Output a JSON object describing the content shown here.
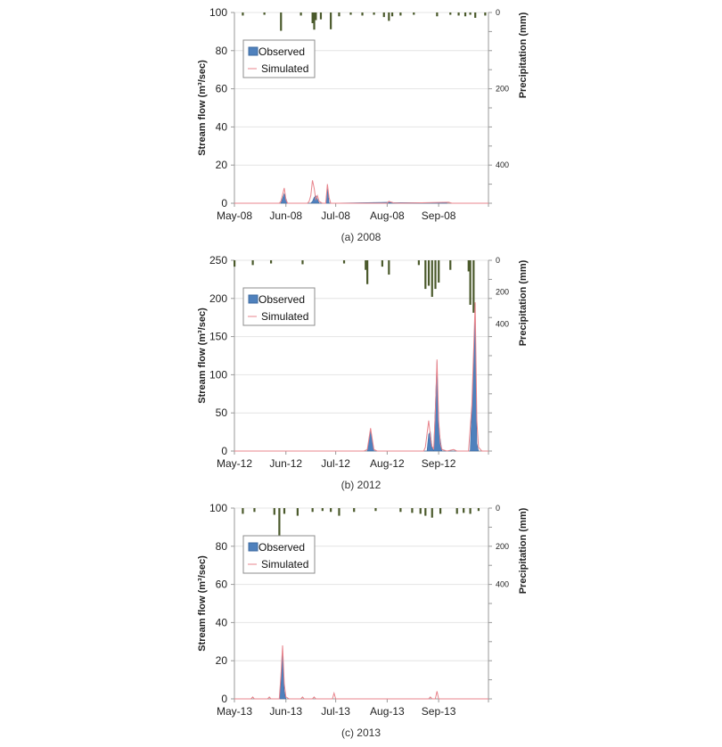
{
  "chart_data": [
    {
      "type": "area",
      "caption": "(a) 2008",
      "ylabel": "Stream flow (m³/sec)",
      "y2label": "Precipitation (mm)",
      "ylim": [
        0,
        100
      ],
      "yticks": [
        0,
        20,
        40,
        60,
        80,
        100
      ],
      "y2ticks": [
        0,
        200,
        400
      ],
      "y2lim": [
        0,
        500
      ],
      "xlabels": [
        "May-08",
        "Jun-08",
        "Jul-08",
        "Aug-08",
        "Sep-08"
      ],
      "legend": [
        "Observed",
        "Simulated"
      ],
      "colors": {
        "observed": "#4f81bd",
        "simulated": "#e8848c",
        "precip": "#4b5a2c"
      },
      "series": [
        {
          "name": "Observed",
          "points": [
            [
              28,
              0
            ],
            [
              30,
              5
            ],
            [
              32,
              0
            ],
            [
              46,
              0
            ],
            [
              47,
              1
            ],
            [
              48,
              3
            ],
            [
              49,
              4
            ],
            [
              50,
              2
            ],
            [
              51,
              0
            ],
            [
              55,
              0
            ],
            [
              56,
              9
            ],
            [
              57,
              0
            ],
            [
              93,
              0.5
            ],
            [
              95,
              0.3
            ],
            [
              128,
              0.3
            ]
          ]
        },
        {
          "name": "Simulated",
          "points": [
            [
              0,
              0
            ],
            [
              27,
              0
            ],
            [
              28,
              1
            ],
            [
              30,
              8
            ],
            [
              31,
              2
            ],
            [
              32,
              0
            ],
            [
              44,
              0
            ],
            [
              45,
              1
            ],
            [
              46,
              4
            ],
            [
              47,
              12
            ],
            [
              48,
              8
            ],
            [
              49,
              2
            ],
            [
              50,
              4
            ],
            [
              51,
              1
            ],
            [
              53,
              0
            ],
            [
              55,
              0
            ],
            [
              56,
              10
            ],
            [
              57,
              3
            ],
            [
              58,
              0
            ],
            [
              92,
              0
            ],
            [
              93,
              1
            ],
            [
              94,
              0.7
            ],
            [
              96,
              0.2
            ],
            [
              100,
              0
            ],
            [
              129,
              0.5
            ],
            [
              131,
              0
            ],
            [
              153,
              0
            ]
          ]
        },
        {
          "name": "Precipitation",
          "bars": [
            [
              5,
              8
            ],
            [
              18,
              6
            ],
            [
              28,
              48
            ],
            [
              40,
              8
            ],
            [
              47,
              28
            ],
            [
              48,
              45
            ],
            [
              49,
              20
            ],
            [
              52,
              18
            ],
            [
              58,
              44
            ],
            [
              63,
              10
            ],
            [
              70,
              6
            ],
            [
              77,
              8
            ],
            [
              84,
              6
            ],
            [
              90,
              12
            ],
            [
              93,
              22
            ],
            [
              95,
              10
            ],
            [
              100,
              8
            ],
            [
              108,
              6
            ],
            [
              122,
              10
            ],
            [
              130,
              6
            ],
            [
              135,
              8
            ],
            [
              139,
              10
            ],
            [
              142,
              6
            ],
            [
              145,
              14
            ],
            [
              151,
              8
            ]
          ]
        }
      ]
    },
    {
      "type": "area",
      "caption": "(b) 2012",
      "ylabel": "Stream flow (m³/sec)",
      "y2label": "Precipitation (mm)",
      "ylim": [
        0,
        250
      ],
      "yticks": [
        0,
        50,
        100,
        150,
        200,
        250
      ],
      "y2ticks": [
        0,
        200,
        400
      ],
      "y2lim": [
        0,
        1200
      ],
      "xlabels": [
        "May-12",
        "Jun-12",
        "Jul-12",
        "Aug-12",
        "Sep-12"
      ],
      "legend": [
        "Observed",
        "Simulated"
      ],
      "colors": {
        "observed": "#4f81bd",
        "simulated": "#e8848c",
        "precip": "#4b5a2c"
      },
      "series": [
        {
          "name": "Observed",
          "points": [
            [
              80,
              0
            ],
            [
              82,
              28
            ],
            [
              84,
              0
            ],
            [
              116,
              0
            ],
            [
              117,
              22
            ],
            [
              118,
              25
            ],
            [
              119,
              5
            ],
            [
              120,
              0
            ],
            [
              121,
              60
            ],
            [
              122,
              118
            ],
            [
              123,
              30
            ],
            [
              124,
              15
            ],
            [
              125,
              0
            ],
            [
              142,
              0
            ],
            [
              144,
              110
            ],
            [
              145,
              190
            ],
            [
              146,
              10
            ],
            [
              147,
              0
            ]
          ]
        },
        {
          "name": "Simulated",
          "points": [
            [
              0,
              0
            ],
            [
              78,
              0
            ],
            [
              80,
              2
            ],
            [
              82,
              30
            ],
            [
              84,
              2
            ],
            [
              86,
              0
            ],
            [
              114,
              0
            ],
            [
              115,
              5
            ],
            [
              117,
              40
            ],
            [
              118,
              20
            ],
            [
              119,
              6
            ],
            [
              120,
              3
            ],
            [
              121,
              50
            ],
            [
              122,
              120
            ],
            [
              123,
              40
            ],
            [
              124,
              10
            ],
            [
              125,
              2
            ],
            [
              128,
              0
            ],
            [
              132,
              2
            ],
            [
              134,
              0
            ],
            [
              141,
              0
            ],
            [
              143,
              60
            ],
            [
              145,
              195
            ],
            [
              146,
              40
            ],
            [
              147,
              5
            ],
            [
              149,
              0
            ],
            [
              153,
              0
            ]
          ]
        },
        {
          "name": "Precipitation",
          "bars": [
            [
              0,
              40
            ],
            [
              11,
              30
            ],
            [
              22,
              20
            ],
            [
              41,
              25
            ],
            [
              66,
              20
            ],
            [
              79,
              60
            ],
            [
              80,
              150
            ],
            [
              89,
              40
            ],
            [
              93,
              90
            ],
            [
              111,
              30
            ],
            [
              115,
              180
            ],
            [
              117,
              160
            ],
            [
              119,
              230
            ],
            [
              121,
              180
            ],
            [
              123,
              140
            ],
            [
              130,
              60
            ],
            [
              141,
              70
            ],
            [
              142,
              280
            ],
            [
              144,
              330
            ]
          ]
        }
      ]
    },
    {
      "type": "area",
      "caption": "(c) 2013",
      "ylabel": "Stream flow (m³/sec)",
      "y2label": "Precipitation (mm)",
      "ylim": [
        0,
        100
      ],
      "yticks": [
        0,
        20,
        40,
        60,
        80,
        100
      ],
      "y2ticks": [
        0,
        200,
        400
      ],
      "y2lim": [
        0,
        1000
      ],
      "xlabels": [
        "May-13",
        "Jun-13",
        "Jul-13",
        "Aug-13",
        "Sep-13"
      ],
      "legend": [
        "Observed",
        "Simulated"
      ],
      "colors": {
        "observed": "#4f81bd",
        "simulated": "#e8848c",
        "precip": "#4b5a2c"
      },
      "series": [
        {
          "name": "Observed",
          "points": [
            [
              27,
              0
            ],
            [
              28,
              8
            ],
            [
              29,
              25
            ],
            [
              30,
              4
            ],
            [
              31,
              0
            ]
          ]
        },
        {
          "name": "Simulated",
          "points": [
            [
              0,
              0
            ],
            [
              10,
              0
            ],
            [
              11,
              1
            ],
            [
              12,
              0
            ],
            [
              20,
              0
            ],
            [
              21,
              1
            ],
            [
              22,
              0
            ],
            [
              27,
              0
            ],
            [
              28,
              12
            ],
            [
              29,
              28
            ],
            [
              30,
              8
            ],
            [
              31,
              1
            ],
            [
              33,
              0
            ],
            [
              40,
              0
            ],
            [
              41,
              1
            ],
            [
              42,
              0
            ],
            [
              47,
              0
            ],
            [
              48,
              1
            ],
            [
              49,
              0
            ],
            [
              59,
              0
            ],
            [
              60,
              3
            ],
            [
              61,
              0
            ],
            [
              117,
              0
            ],
            [
              118,
              1
            ],
            [
              119,
              0
            ],
            [
              121,
              0
            ],
            [
              122,
              4
            ],
            [
              123,
              0
            ],
            [
              153,
              0
            ]
          ]
        },
        {
          "name": "Precipitation",
          "bars": [
            [
              5,
              30
            ],
            [
              12,
              20
            ],
            [
              24,
              35
            ],
            [
              27,
              160
            ],
            [
              30,
              30
            ],
            [
              38,
              40
            ],
            [
              47,
              20
            ],
            [
              53,
              15
            ],
            [
              58,
              20
            ],
            [
              63,
              40
            ],
            [
              72,
              20
            ],
            [
              85,
              15
            ],
            [
              100,
              20
            ],
            [
              107,
              25
            ],
            [
              112,
              30
            ],
            [
              115,
              40
            ],
            [
              119,
              50
            ],
            [
              124,
              30
            ],
            [
              134,
              30
            ],
            [
              138,
              25
            ],
            [
              142,
              30
            ],
            [
              147,
              15
            ]
          ]
        }
      ]
    }
  ]
}
